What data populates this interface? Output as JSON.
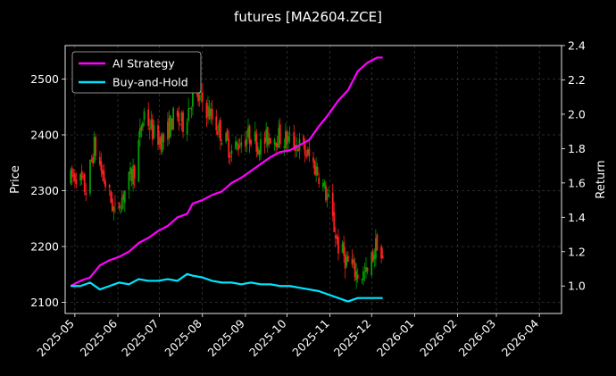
{
  "chart_data": {
    "type": "line",
    "title": "futures [MA2604.ZCE]",
    "ylabel_left": "Price",
    "ylabel_right": "Return",
    "xlabel": "",
    "grid": true,
    "legend_position": "top-left",
    "x_ticks": [
      "2025-05",
      "2025-06",
      "2025-07",
      "2025-08",
      "2025-09",
      "2025-10",
      "2025-11",
      "2025-12",
      "2026-01",
      "2026-02",
      "2026-03",
      "2026-04"
    ],
    "x_range": [
      "2025-04-24",
      "2026-04-17"
    ],
    "price_axis": {
      "ylim": [
        2080,
        2560
      ],
      "ticks": [
        2100,
        2200,
        2300,
        2400,
        2500
      ]
    },
    "return_axis": {
      "ylim": [
        0.84,
        2.4
      ],
      "ticks": [
        1.0,
        1.2,
        1.4,
        1.6,
        1.8,
        2.0,
        2.2,
        2.4
      ]
    },
    "candles": {
      "up_color": "#00a000",
      "down_color": "#ff2020",
      "anchor_dates": [
        "2025-04-28",
        "2025-05-02",
        "2025-05-09",
        "2025-05-15",
        "2025-05-22",
        "2025-05-30",
        "2025-06-06",
        "2025-06-13",
        "2025-06-20",
        "2025-06-27",
        "2025-07-04",
        "2025-07-11",
        "2025-07-18",
        "2025-07-25",
        "2025-08-01",
        "2025-08-08",
        "2025-08-15",
        "2025-08-22",
        "2025-08-29",
        "2025-09-05",
        "2025-09-12",
        "2025-09-19",
        "2025-09-26",
        "2025-10-03",
        "2025-10-10",
        "2025-10-17",
        "2025-10-24",
        "2025-10-31",
        "2025-11-07",
        "2025-11-14",
        "2025-11-21",
        "2025-11-28",
        "2025-12-05",
        "2025-12-09"
      ],
      "anchor_prices": [
        2320,
        2330,
        2300,
        2380,
        2320,
        2260,
        2300,
        2340,
        2440,
        2400,
        2390,
        2430,
        2420,
        2470,
        2460,
        2430,
        2400,
        2370,
        2390,
        2400,
        2380,
        2400,
        2395,
        2390,
        2380,
        2360,
        2330,
        2280,
        2200,
        2170,
        2150,
        2150,
        2210,
        2170
      ]
    },
    "series": [
      {
        "name": "AI Strategy",
        "color": "#ff00ff",
        "dates": [
          "2025-04-28",
          "2025-05-05",
          "2025-05-12",
          "2025-05-19",
          "2025-05-26",
          "2025-06-02",
          "2025-06-09",
          "2025-06-16",
          "2025-06-23",
          "2025-06-30",
          "2025-07-07",
          "2025-07-14",
          "2025-07-21",
          "2025-07-25",
          "2025-08-01",
          "2025-08-08",
          "2025-08-15",
          "2025-08-22",
          "2025-08-29",
          "2025-09-05",
          "2025-09-12",
          "2025-09-19",
          "2025-09-26",
          "2025-10-03",
          "2025-10-10",
          "2025-10-17",
          "2025-10-24",
          "2025-10-31",
          "2025-11-07",
          "2025-11-14",
          "2025-11-21",
          "2025-11-28",
          "2025-12-05",
          "2025-12-09"
        ],
        "values": [
          1.0,
          1.03,
          1.05,
          1.12,
          1.15,
          1.17,
          1.2,
          1.25,
          1.28,
          1.32,
          1.35,
          1.4,
          1.42,
          1.48,
          1.5,
          1.53,
          1.55,
          1.6,
          1.63,
          1.67,
          1.71,
          1.75,
          1.78,
          1.79,
          1.82,
          1.85,
          1.93,
          2.0,
          2.08,
          2.14,
          2.25,
          2.3,
          2.33,
          2.33
        ]
      },
      {
        "name": "Buy-and-Hold",
        "color": "#00e5ff",
        "dates": [
          "2025-04-28",
          "2025-05-05",
          "2025-05-12",
          "2025-05-19",
          "2025-05-26",
          "2025-06-02",
          "2025-06-09",
          "2025-06-16",
          "2025-06-23",
          "2025-06-30",
          "2025-07-07",
          "2025-07-14",
          "2025-07-21",
          "2025-07-25",
          "2025-08-01",
          "2025-08-08",
          "2025-08-15",
          "2025-08-22",
          "2025-08-29",
          "2025-09-05",
          "2025-09-12",
          "2025-09-19",
          "2025-09-26",
          "2025-10-03",
          "2025-10-10",
          "2025-10-17",
          "2025-10-24",
          "2025-10-31",
          "2025-11-07",
          "2025-11-14",
          "2025-11-21",
          "2025-11-28",
          "2025-12-05",
          "2025-12-09"
        ],
        "values": [
          1.0,
          1.0,
          1.02,
          0.98,
          1.0,
          1.02,
          1.01,
          1.04,
          1.03,
          1.03,
          1.04,
          1.03,
          1.07,
          1.06,
          1.05,
          1.03,
          1.02,
          1.02,
          1.01,
          1.02,
          1.01,
          1.01,
          1.0,
          1.0,
          0.99,
          0.98,
          0.97,
          0.95,
          0.93,
          0.91,
          0.93,
          0.93,
          0.93,
          0.93
        ]
      }
    ]
  }
}
